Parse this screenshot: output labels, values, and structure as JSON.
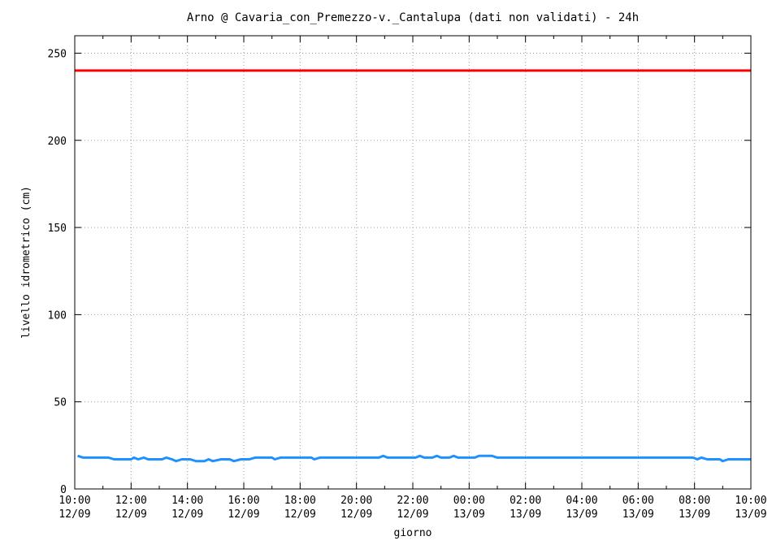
{
  "chart_data": {
    "type": "line",
    "title": "Arno @ Cavaria_con_Premezzo-v._Cantalupa (dati non validati) - 24h",
    "xlabel": "giorno",
    "ylabel": "livello idrometrico (cm)",
    "ylim": [
      0,
      260
    ],
    "yticks": [
      0,
      50,
      100,
      150,
      200,
      250
    ],
    "xlim": [
      0,
      24
    ],
    "xticks": [
      {
        "x": 0,
        "time": "10:00",
        "date": "12/09"
      },
      {
        "x": 2,
        "time": "12:00",
        "date": "12/09"
      },
      {
        "x": 4,
        "time": "14:00",
        "date": "12/09"
      },
      {
        "x": 6,
        "time": "16:00",
        "date": "12/09"
      },
      {
        "x": 8,
        "time": "18:00",
        "date": "12/09"
      },
      {
        "x": 10,
        "time": "20:00",
        "date": "12/09"
      },
      {
        "x": 12,
        "time": "22:00",
        "date": "12/09"
      },
      {
        "x": 14,
        "time": "00:00",
        "date": "13/09"
      },
      {
        "x": 16,
        "time": "02:00",
        "date": "13/09"
      },
      {
        "x": 18,
        "time": "04:00",
        "date": "13/09"
      },
      {
        "x": 20,
        "time": "06:00",
        "date": "13/09"
      },
      {
        "x": 22,
        "time": "08:00",
        "date": "13/09"
      },
      {
        "x": 24,
        "time": "10:00",
        "date": "13/09"
      }
    ],
    "grid": true,
    "series": [
      {
        "color": "#ff0000",
        "points": [
          [
            0,
            240
          ],
          [
            24,
            240
          ]
        ]
      },
      {
        "color": "#1e90ff",
        "points": [
          [
            0.1,
            19
          ],
          [
            0.3,
            18
          ],
          [
            1.2,
            18
          ],
          [
            1.4,
            17
          ],
          [
            2.0,
            17
          ],
          [
            2.1,
            18
          ],
          [
            2.25,
            17
          ],
          [
            2.45,
            18
          ],
          [
            2.6,
            17
          ],
          [
            3.1,
            17
          ],
          [
            3.25,
            18
          ],
          [
            3.45,
            17
          ],
          [
            3.6,
            16
          ],
          [
            3.8,
            17
          ],
          [
            4.1,
            17
          ],
          [
            4.3,
            16
          ],
          [
            4.6,
            16
          ],
          [
            4.75,
            17
          ],
          [
            4.9,
            16
          ],
          [
            5.2,
            17
          ],
          [
            5.5,
            17
          ],
          [
            5.65,
            16
          ],
          [
            5.9,
            17
          ],
          [
            6.2,
            17
          ],
          [
            6.4,
            18
          ],
          [
            7.0,
            18
          ],
          [
            7.1,
            17
          ],
          [
            7.3,
            18
          ],
          [
            8.4,
            18
          ],
          [
            8.5,
            17
          ],
          [
            8.7,
            18
          ],
          [
            10.8,
            18
          ],
          [
            10.95,
            19
          ],
          [
            11.1,
            18
          ],
          [
            12.1,
            18
          ],
          [
            12.25,
            19
          ],
          [
            12.4,
            18
          ],
          [
            12.7,
            18
          ],
          [
            12.85,
            19
          ],
          [
            13.0,
            18
          ],
          [
            13.3,
            18
          ],
          [
            13.45,
            19
          ],
          [
            13.6,
            18
          ],
          [
            14.2,
            18
          ],
          [
            14.35,
            19
          ],
          [
            14.8,
            19
          ],
          [
            15.0,
            18
          ],
          [
            21.95,
            18
          ],
          [
            22.1,
            17
          ],
          [
            22.25,
            18
          ],
          [
            22.45,
            17
          ],
          [
            22.9,
            17
          ],
          [
            23.0,
            16
          ],
          [
            23.2,
            17
          ],
          [
            24.0,
            17
          ]
        ]
      }
    ]
  }
}
